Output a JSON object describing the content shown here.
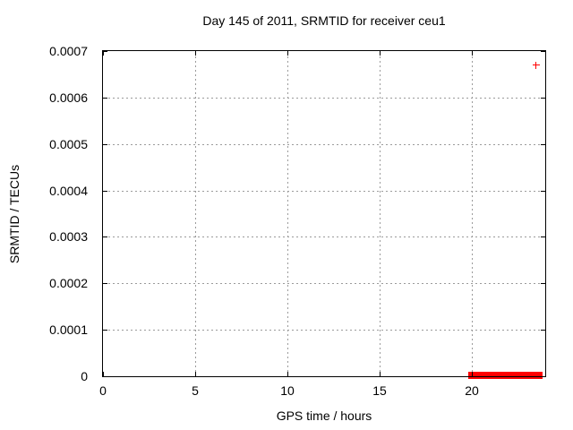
{
  "chart_data": {
    "type": "scatter",
    "title": "Day 145 of 2011, SRMTID for receiver ceu1",
    "xlabel": "GPS time / hours",
    "ylabel": "SRMTID / TECUs",
    "xlim": [
      0,
      24
    ],
    "ylim": [
      0,
      0.0007
    ],
    "xticks": [
      0,
      5,
      10,
      15,
      20
    ],
    "xtick_labels": [
      "0",
      "5",
      "10",
      "15",
      "20"
    ],
    "yticks": [
      0,
      0.0001,
      0.0002,
      0.0003,
      0.0004,
      0.0005,
      0.0006,
      0.0007
    ],
    "ytick_labels": [
      "0",
      "0.0001",
      "0.0002",
      "0.0003",
      "0.0004",
      "0.0005",
      "0.0006",
      "0.0007"
    ],
    "grid": true,
    "legend": "none",
    "series": [
      {
        "name": "SRMTID",
        "color": "#ff0000",
        "marker": "plus",
        "points": [
          [
            23.5,
            0.00067
          ]
        ],
        "dense_band": {
          "x_start": 19.8,
          "x_end": 23.85,
          "y": 0,
          "note": "dense cluster of near-zero values drawn as a thick red bar on the x-axis"
        }
      }
    ],
    "colors": {
      "background": "#ffffff",
      "border": "#000000",
      "grid": "#9b9b9b",
      "text": "#000000",
      "series": "#ff0000"
    }
  }
}
